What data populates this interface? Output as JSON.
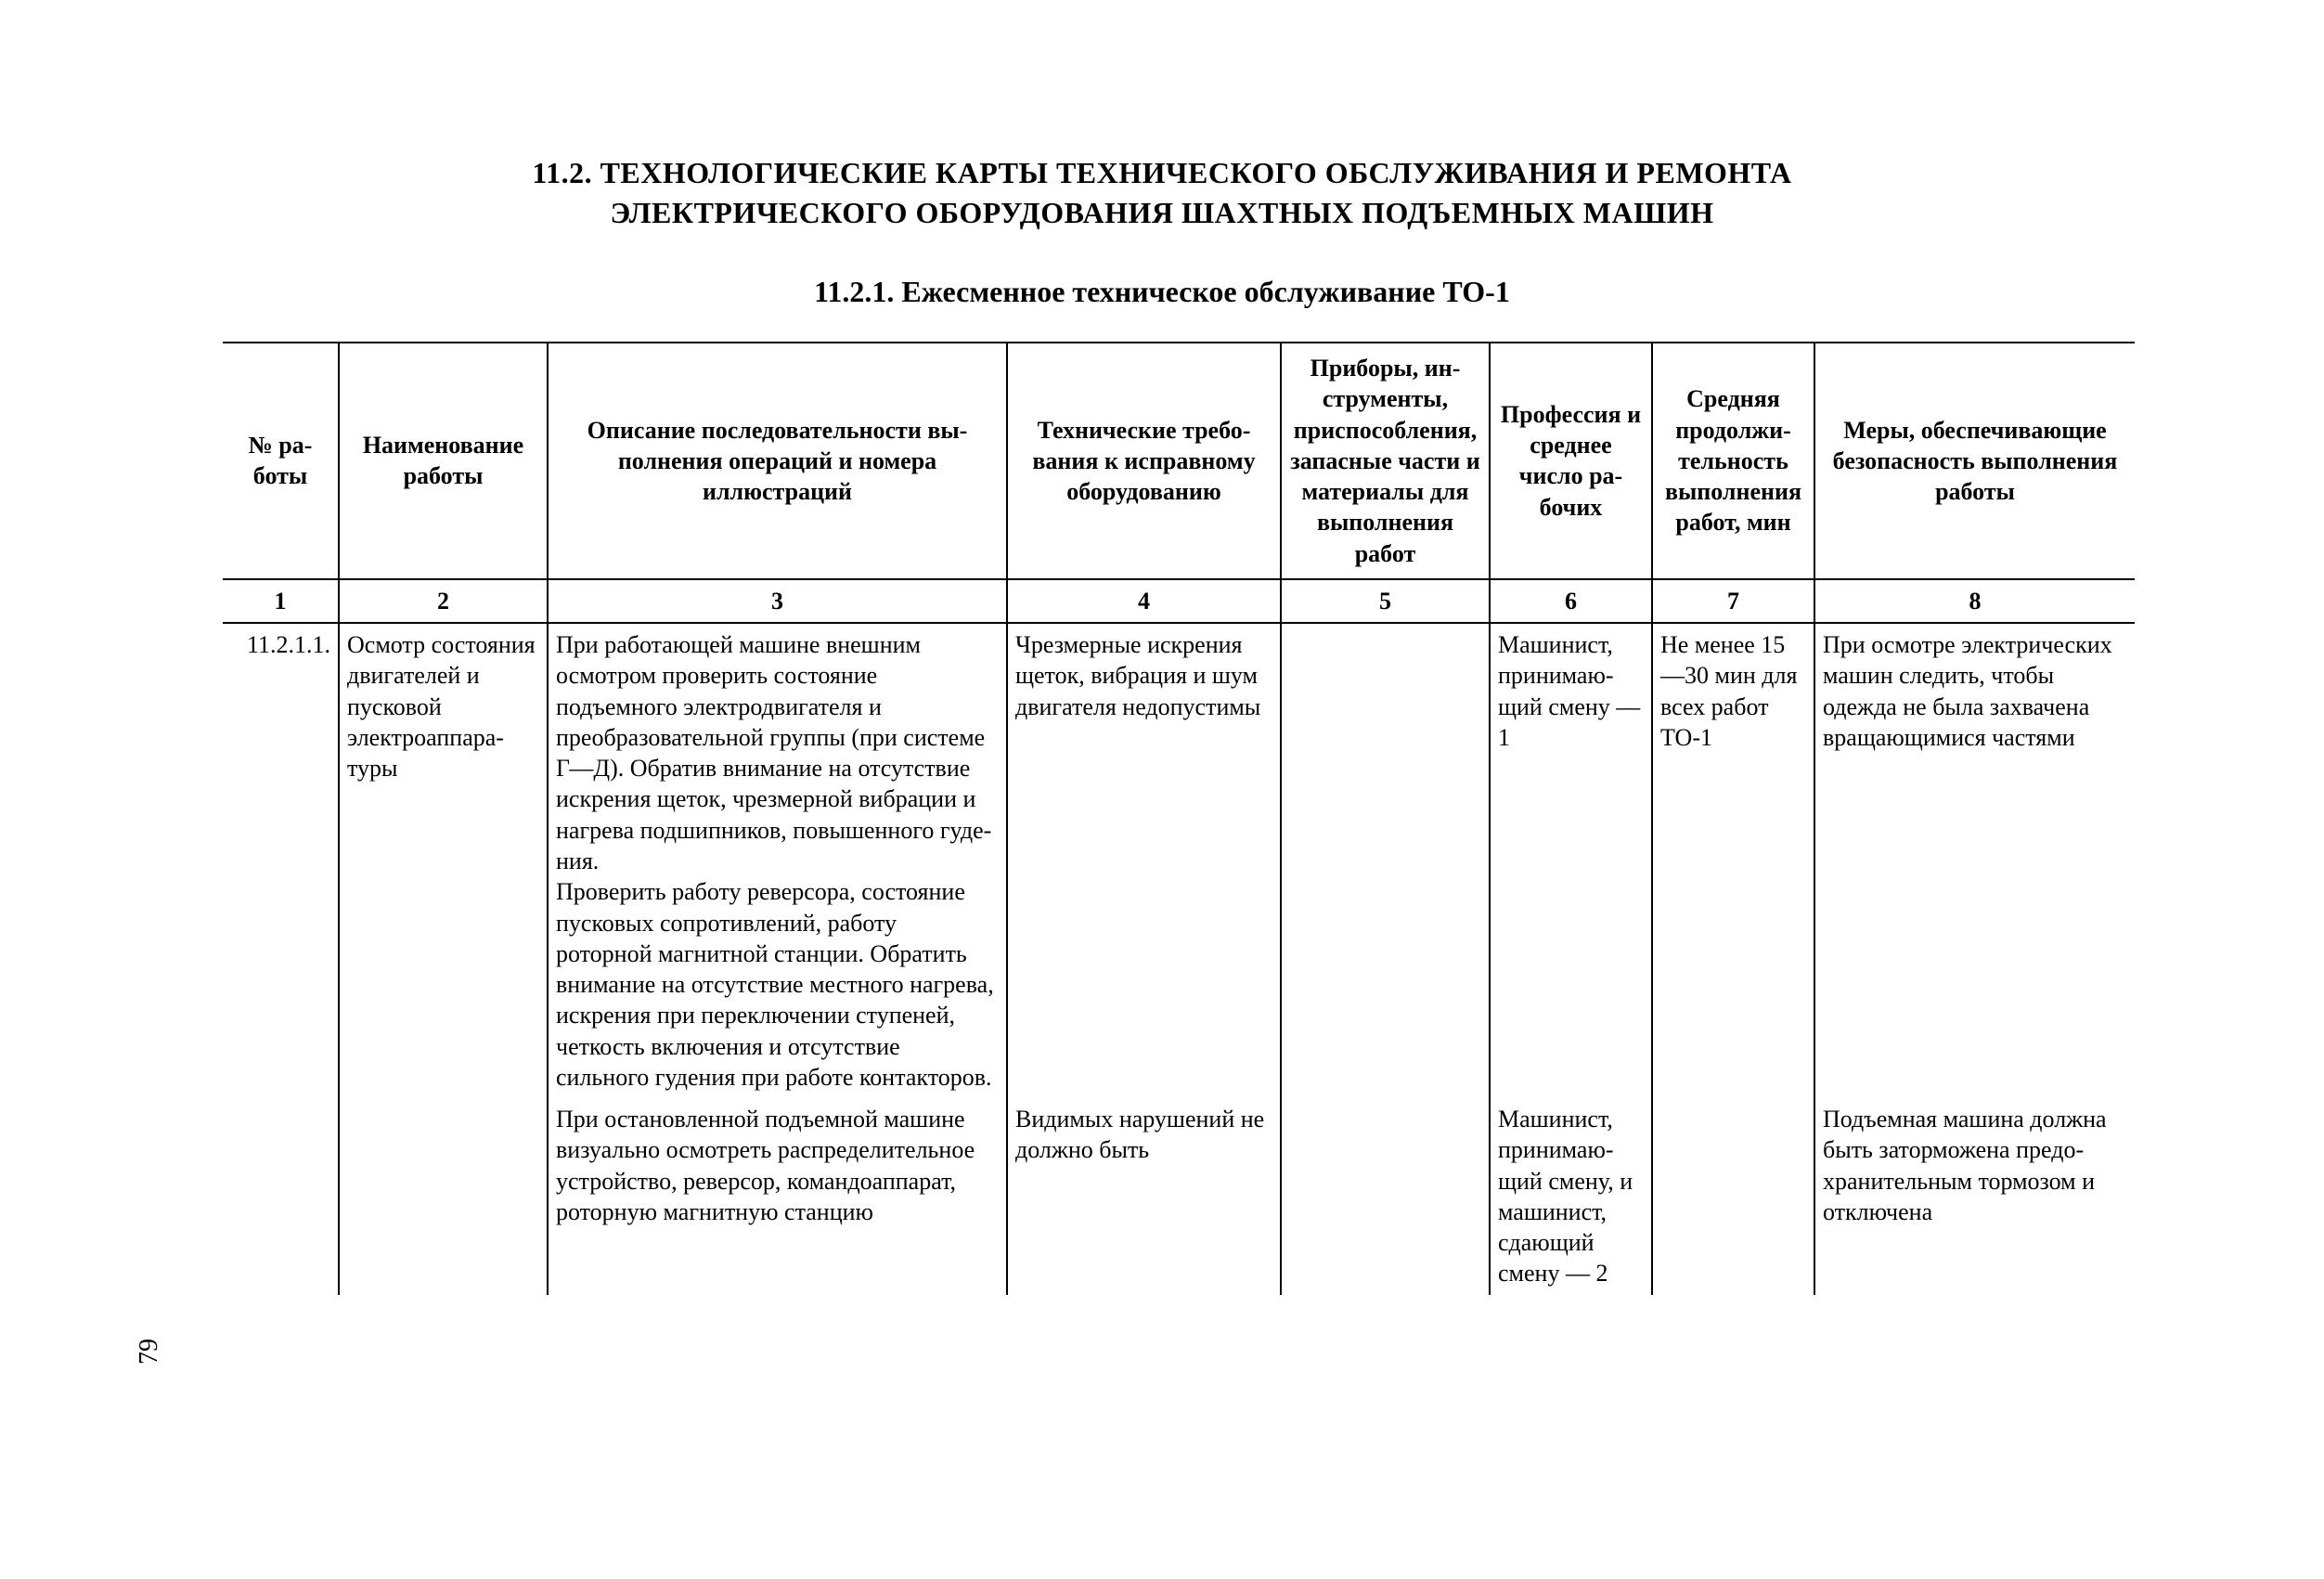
{
  "heading": {
    "line1": "11.2. ТЕХНОЛОГИЧЕСКИЕ КАРТЫ ТЕХНИЧЕСКОГО ОБСЛУЖИВАНИЯ И РЕМОНТА",
    "line2": "ЭЛЕКТРИЧЕСКОГО ОБОРУДОВАНИЯ ШАХТНЫХ ПОДЪЕМНЫХ МАШИН",
    "sub": "11.2.1. Ежесменное техническое обслуживание ТО-1"
  },
  "columns": {
    "h1": "№ ра­боты",
    "h2": "Наименование работы",
    "h3": "Описание последовательности вы­полнения операций и номера иллюстраций",
    "h4": "Технические требо­вания к исправному оборудованию",
    "h5": "Приборы, ин­струменты, приспособле­ния, запасные части и мате­риалы для вы­полнения работ",
    "h6": "Профессия и среднее число ра­бочих",
    "h7": "Средняя продолжи­тельность выполне­ния работ, мин",
    "h8": "Меры, обеспечи­вающие безопас­ность выполнения работы",
    "n1": "1",
    "n2": "2",
    "n3": "3",
    "n4": "4",
    "n5": "5",
    "n6": "6",
    "n7": "7",
    "n8": "8"
  },
  "row1": {
    "num": "11.2.1.1.",
    "name": "Осмотр состоя­ния двигателей и пусковой электроаппара­туры",
    "desc_a": "При работающей машине внешним осмотром проверить состояние подъемного электродвигателя и преобразовательной группы (при системе Г—Д). Обратив внимание на отсутствие искрения щеток, чрезмерной вибрации и нагрева подшипников, повышенного гуде­ния.",
    "desc_b": "Проверить работу реверсора, со­стояние пусковых сопротивлений, работу роторной магнитной стан­ции. Обратить внимание на отсутст­вие местного нагрева, искрения при переключении ступеней, четкость включения и отсутствие сильного гудения при работе контакторов.",
    "tech": "Чрезмерные искре­ния щеток, вибра­ция и шум двигате­ля недопустимы",
    "tools": "",
    "prof": "Машинист, принимаю­щий сме­ну — 1",
    "dur": "Не менее 15—30 мин для всех работ ТО-1",
    "safe": "При осмотре электрических ма­шин следить, что­бы одежда не была захвачена вращаю­щимися частями"
  },
  "row2": {
    "desc": "При остановленной подъемной ма­шине визуально осмотреть распре­делительное устройство, реверсор, командоаппарат, роторную магнит­ную станцию",
    "tech": "Видимых нарушений не должно быть",
    "prof": "Машинист, принимаю­щий смену, и маши­нист, сдаю­щий сме­ну — 2",
    "safe": "Подъемная маши­на должна быть за­торможена предо­хранительным тор­мозом и отключена"
  },
  "page_number": "79"
}
